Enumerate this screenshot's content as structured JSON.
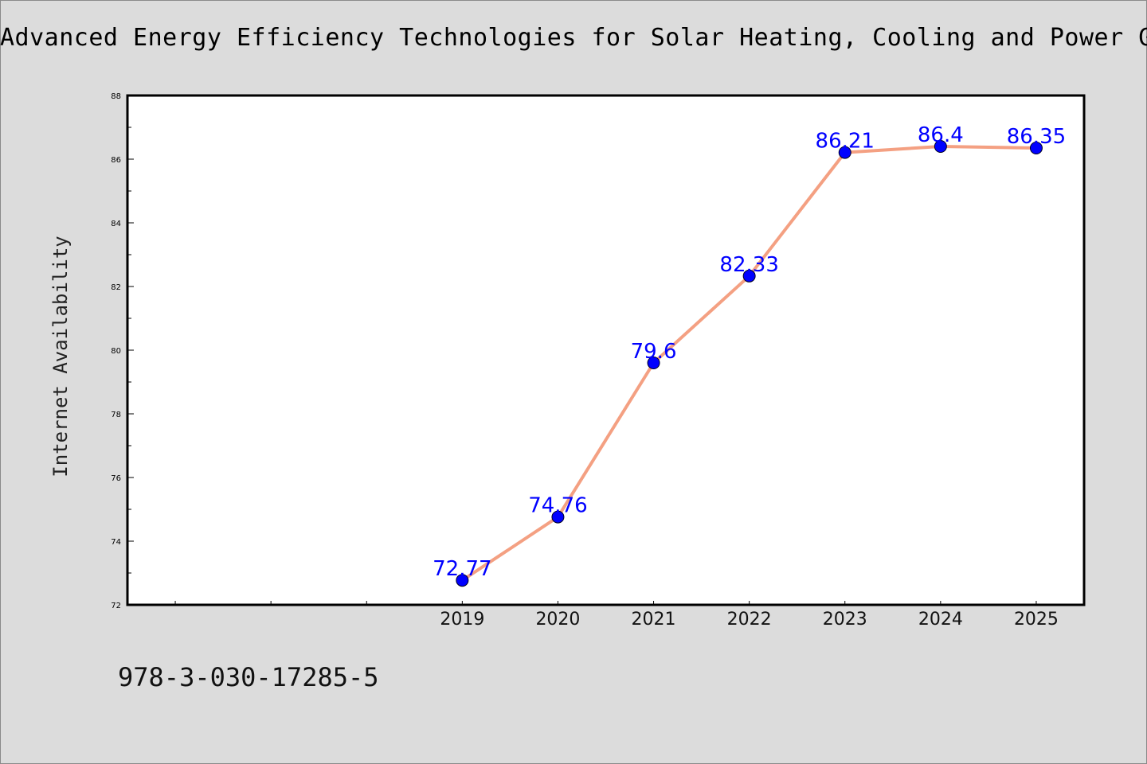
{
  "chart_data": {
    "type": "line",
    "title": "Advanced Energy Efficiency Technologies for Solar Heating, Cooling and Power Gen",
    "xlabel": "",
    "ylabel": "Internet Availability",
    "categories": [
      "2019",
      "2020",
      "2021",
      "2022",
      "2023",
      "2024",
      "2025"
    ],
    "series": [
      {
        "values": [
          72.77,
          74.76,
          79.6,
          82.33,
          86.21,
          86.4,
          86.35
        ],
        "data_labels": [
          "72.77",
          "74.76",
          "79.6",
          "82.33",
          "86.21",
          "86.4",
          "86.35"
        ]
      }
    ],
    "x_range_years": [
      2015.5,
      2025.5
    ],
    "ylim": [
      72,
      88
    ],
    "y_ticks": [
      72,
      74,
      76,
      78,
      80,
      82,
      84,
      86,
      88
    ],
    "y_tick_labels": [
      "72",
      "74",
      "76",
      "78",
      "80",
      "82",
      "84",
      "86",
      "88"
    ],
    "grid": false,
    "legend": "none",
    "line_color": "#f4a082",
    "marker_color": "#0000ff",
    "label_color": "#0000ff"
  },
  "footer": {
    "isbn": "978-3-030-17285-5"
  }
}
